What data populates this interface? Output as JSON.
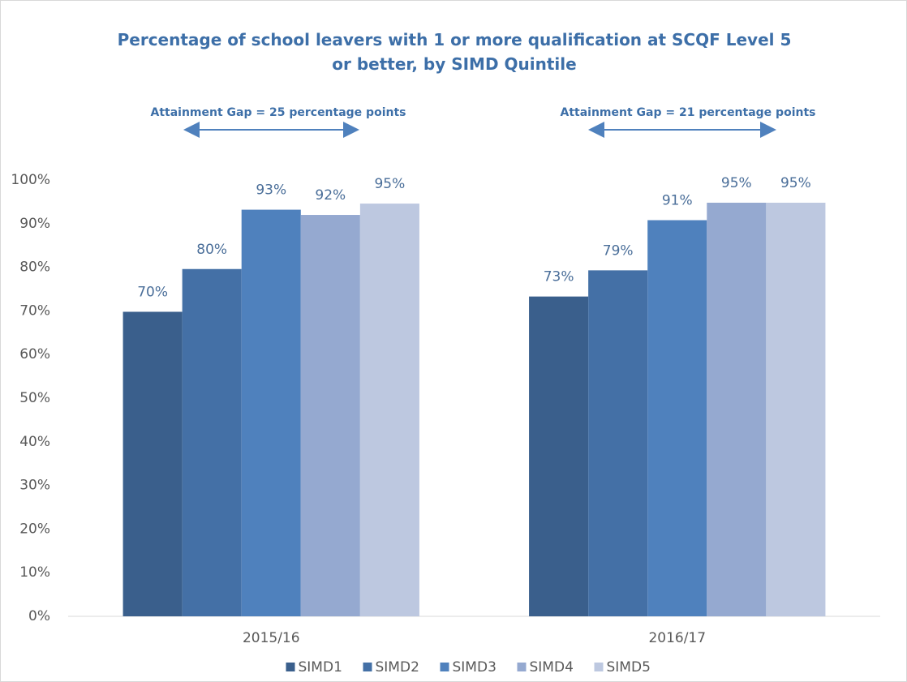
{
  "chart_data": {
    "type": "bar",
    "title": "Percentage of school leavers with 1 or more qualification at SCQF Level 5 or better, by SIMD Quintile",
    "annotations": [
      "Attainment Gap = 25 percentage points",
      "Attainment Gap = 21 percentage points"
    ],
    "categories": [
      "2015/16",
      "2016/17"
    ],
    "series": [
      {
        "name": "SIMD1",
        "color": "#3a5f8c",
        "values": [
          69.8,
          73.3
        ],
        "value_labels": [
          "70%",
          "73%"
        ]
      },
      {
        "name": "SIMD2",
        "color": "#4470a6",
        "values": [
          79.6,
          79.3
        ],
        "value_labels": [
          "80%",
          "79%"
        ]
      },
      {
        "name": "SIMD3",
        "color": "#4f81bd",
        "values": [
          93.2,
          90.8
        ],
        "value_labels": [
          "93%",
          "91%"
        ]
      },
      {
        "name": "SIMD4",
        "color": "#95a9d0",
        "values": [
          92.0,
          94.8
        ],
        "value_labels": [
          "92%",
          "95%"
        ]
      },
      {
        "name": "SIMD5",
        "color": "#bdc8e0",
        "values": [
          94.6,
          94.8
        ],
        "value_labels": [
          "95%",
          "95%"
        ]
      }
    ],
    "ylim": [
      0,
      100
    ],
    "yticks": [
      {
        "value": 0,
        "label": "0%"
      },
      {
        "value": 10,
        "label": "10%"
      },
      {
        "value": 20,
        "label": "20%"
      },
      {
        "value": 30,
        "label": "30%"
      },
      {
        "value": 40,
        "label": "40%"
      },
      {
        "value": 50,
        "label": "50%"
      },
      {
        "value": 60,
        "label": "60%"
      },
      {
        "value": 70,
        "label": "70%"
      },
      {
        "value": 80,
        "label": "80%"
      },
      {
        "value": 90,
        "label": "90%"
      },
      {
        "value": 100,
        "label": "100%"
      }
    ],
    "grid": false,
    "legend": "bottom"
  }
}
